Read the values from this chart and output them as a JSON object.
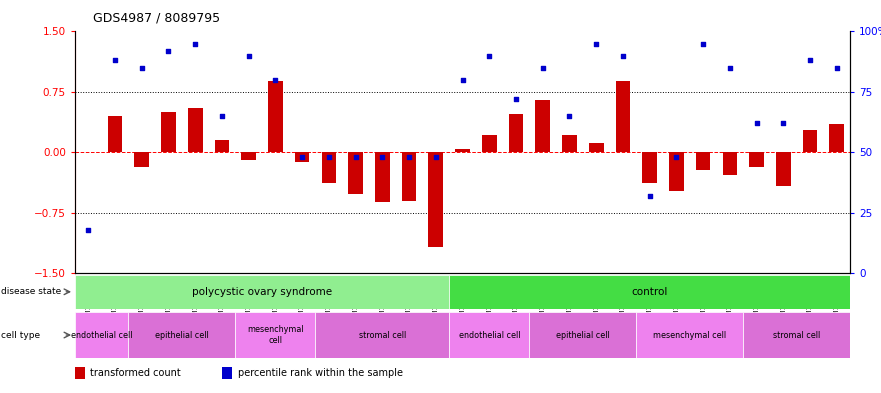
{
  "title": "GDS4987 / 8089795",
  "samples": [
    "GSM1174425",
    "GSM1174429",
    "GSM1174436",
    "GSM1174427",
    "GSM1174430",
    "GSM1174432",
    "GSM1174435",
    "GSM1174424",
    "GSM1174428",
    "GSM1174433",
    "GSM1174423",
    "GSM1174426",
    "GSM1174431",
    "GSM1174434",
    "GSM1174409",
    "GSM1174414",
    "GSM1174418",
    "GSM1174421",
    "GSM1174412",
    "GSM1174416",
    "GSM1174419",
    "GSM1174408",
    "GSM1174413",
    "GSM1174417",
    "GSM1174420",
    "GSM1174410",
    "GSM1174411",
    "GSM1174415",
    "GSM1174422"
  ],
  "bar_values": [
    0.0,
    0.45,
    -0.18,
    0.5,
    0.55,
    0.15,
    -0.1,
    0.88,
    -0.12,
    -0.38,
    -0.52,
    -0.62,
    -0.6,
    -1.18,
    0.04,
    0.22,
    0.47,
    0.65,
    0.22,
    0.12,
    0.88,
    -0.38,
    -0.48,
    -0.22,
    -0.28,
    -0.18,
    -0.42,
    0.28,
    0.35
  ],
  "percentile_values": [
    18,
    88,
    85,
    92,
    95,
    65,
    90,
    80,
    48,
    48,
    48,
    48,
    48,
    48,
    80,
    90,
    72,
    85,
    65,
    95,
    90,
    32,
    48,
    95,
    85,
    62,
    62,
    88,
    85
  ],
  "disease_state_groups": [
    {
      "label": "polycystic ovary syndrome",
      "start": 0,
      "end": 14,
      "color": "#90EE90"
    },
    {
      "label": "control",
      "start": 14,
      "end": 29,
      "color": "#44DD44"
    }
  ],
  "cell_type_groups": [
    {
      "label": "endothelial cell",
      "start": 0,
      "end": 2,
      "color": "#EE82EE"
    },
    {
      "label": "epithelial cell",
      "start": 2,
      "end": 6,
      "color": "#DA70D6"
    },
    {
      "label": "mesenchymal\ncell",
      "start": 6,
      "end": 9,
      "color": "#EE82EE"
    },
    {
      "label": "stromal cell",
      "start": 9,
      "end": 14,
      "color": "#DA70D6"
    },
    {
      "label": "endothelial cell",
      "start": 14,
      "end": 17,
      "color": "#EE82EE"
    },
    {
      "label": "epithelial cell",
      "start": 17,
      "end": 21,
      "color": "#DA70D6"
    },
    {
      "label": "mesenchymal cell",
      "start": 21,
      "end": 25,
      "color": "#EE82EE"
    },
    {
      "label": "stromal cell",
      "start": 25,
      "end": 29,
      "color": "#DA70D6"
    }
  ],
  "bar_color": "#CC0000",
  "dot_color": "#0000CC",
  "ylim_left": [
    -1.5,
    1.5
  ],
  "ylim_right": [
    0,
    100
  ],
  "yticks_left": [
    -1.5,
    -0.75,
    0,
    0.75,
    1.5
  ],
  "yticks_right": [
    0,
    25,
    50,
    75,
    100
  ],
  "hlines_dotted": [
    -0.75,
    0.75
  ],
  "hline_dashed": 0.0,
  "legend_items": [
    {
      "color": "#CC0000",
      "label": "transformed count"
    },
    {
      "color": "#0000CC",
      "label": "percentile rank within the sample"
    }
  ]
}
